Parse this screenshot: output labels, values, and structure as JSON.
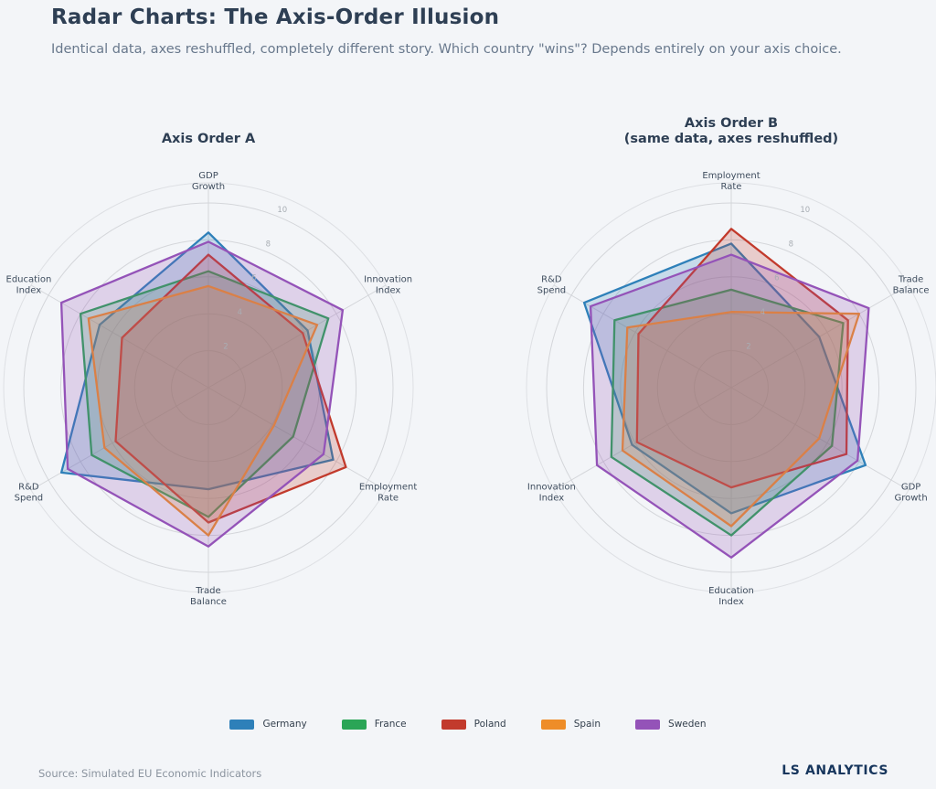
{
  "header": {
    "title": "Radar Charts: The Axis-Order Illusion",
    "subtitle": "Identical data, axes reshuffled, completely different story. Which country \"wins\"? Depends entirely on your axis choice."
  },
  "legend": {
    "items": [
      {
        "label": "Germany",
        "color": "#2e80b9"
      },
      {
        "label": "France",
        "color": "#2aa556"
      },
      {
        "label": "Poland",
        "color": "#c23a2c"
      },
      {
        "label": "Spain",
        "color": "#ee8d28"
      },
      {
        "label": "Sweden",
        "color": "#9453b8"
      }
    ]
  },
  "footer": {
    "source": "Source: Simulated EU Economic Indicators",
    "brand": "LS ANALYTICS"
  },
  "chart_data": [
    {
      "type": "radar",
      "title_lines": [
        "Axis Order A"
      ],
      "axes": [
        [
          "GDP",
          "Growth"
        ],
        [
          "Innovation",
          "Index"
        ],
        [
          "Employment",
          "Rate"
        ],
        [
          "Trade",
          "Balance"
        ],
        [
          "R&D",
          "Spend"
        ],
        [
          "Education",
          "Index"
        ]
      ],
      "r_ticks": [
        2,
        4,
        6,
        8,
        10
      ],
      "r_max": 10,
      "legend_position": "bottom-center",
      "grid": true,
      "series": [
        {
          "name": "Germany",
          "color": "#2e80b9",
          "values": [
            8.4,
            6.2,
            7.8,
            5.5,
            9.2,
            6.8
          ]
        },
        {
          "name": "France",
          "color": "#2aa556",
          "values": [
            6.3,
            7.5,
            5.3,
            7.0,
            7.3,
            8.0
          ]
        },
        {
          "name": "Poland",
          "color": "#c23a2c",
          "values": [
            7.2,
            5.9,
            8.6,
            7.3,
            5.8,
            5.4
          ]
        },
        {
          "name": "Spain",
          "color": "#ee8d28",
          "values": [
            5.5,
            6.8,
            4.1,
            8.0,
            6.5,
            7.5
          ]
        },
        {
          "name": "Sweden",
          "color": "#9453b8",
          "values": [
            7.9,
            8.4,
            7.2,
            8.6,
            8.8,
            9.2
          ]
        }
      ]
    },
    {
      "type": "radar",
      "title_lines": [
        "Axis Order B",
        "(same data, axes reshuffled)"
      ],
      "axes": [
        [
          "Employment",
          "Rate"
        ],
        [
          "Trade",
          "Balance"
        ],
        [
          "GDP",
          "Growth"
        ],
        [
          "Education",
          "Index"
        ],
        [
          "Innovation",
          "Index"
        ],
        [
          "R&D",
          "Spend"
        ]
      ],
      "r_ticks": [
        2,
        4,
        6,
        8,
        10
      ],
      "r_max": 10,
      "legend_position": "bottom-center",
      "grid": true,
      "series": [
        {
          "name": "Germany",
          "color": "#2e80b9",
          "values": [
            7.8,
            5.5,
            8.4,
            6.8,
            6.2,
            9.2
          ]
        },
        {
          "name": "France",
          "color": "#2aa556",
          "values": [
            5.3,
            7.0,
            6.3,
            8.0,
            7.5,
            7.3
          ]
        },
        {
          "name": "Poland",
          "color": "#c23a2c",
          "values": [
            8.6,
            7.3,
            7.2,
            5.4,
            5.9,
            5.8
          ]
        },
        {
          "name": "Spain",
          "color": "#ee8d28",
          "values": [
            4.1,
            8.0,
            5.5,
            7.5,
            6.8,
            6.5
          ]
        },
        {
          "name": "Sweden",
          "color": "#9453b8",
          "values": [
            7.2,
            8.6,
            7.9,
            9.2,
            8.4,
            8.8
          ]
        }
      ]
    }
  ]
}
